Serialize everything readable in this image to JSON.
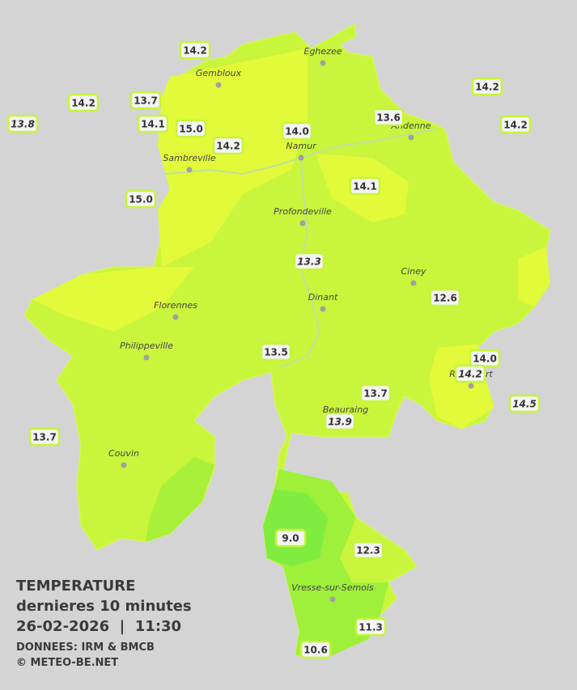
{
  "title": "TEMPERATURE",
  "subtitle": "dernieres 10 minutes",
  "datetime": "26-02-2026  |  11:30",
  "source": "DONNEES: IRM & BMCB",
  "copyright": "© METEO-BE.NET",
  "towns": [
    "Eghezee",
    "Gembloux",
    "Andenne",
    "Namur",
    "Sambreville",
    "Profondeville",
    "Ciney",
    "Dinant",
    "Florennes",
    "Philippeville",
    "Rochefort",
    "Beauraing",
    "Couvin",
    "Vresse-sur-Semois"
  ],
  "stations": [
    {
      "value": "14.2",
      "italic": false
    },
    {
      "value": "14.2",
      "italic": false
    },
    {
      "value": "13.7",
      "italic": false
    },
    {
      "value": "13.8",
      "italic": true
    },
    {
      "value": "14.1",
      "italic": false
    },
    {
      "value": "15.0",
      "italic": false
    },
    {
      "value": "14.2",
      "italic": false
    },
    {
      "value": "14.0",
      "italic": false
    },
    {
      "value": "13.6",
      "italic": false
    },
    {
      "value": "14.2",
      "italic": false
    },
    {
      "value": "14.2",
      "italic": false
    },
    {
      "value": "15.0",
      "italic": false
    },
    {
      "value": "14.1",
      "italic": false
    },
    {
      "value": "13.3",
      "italic": true
    },
    {
      "value": "12.6",
      "italic": false
    },
    {
      "value": "13.5",
      "italic": false
    },
    {
      "value": "14.0",
      "italic": false
    },
    {
      "value": "14.2",
      "italic": true
    },
    {
      "value": "14.5",
      "italic": true
    },
    {
      "value": "13.7",
      "italic": false
    },
    {
      "value": "13.9",
      "italic": true
    },
    {
      "value": "13.7",
      "italic": false
    },
    {
      "value": "9.0",
      "italic": false
    },
    {
      "value": "12.3",
      "italic": false
    },
    {
      "value": "11.3",
      "italic": false
    },
    {
      "value": "10.6",
      "italic": false
    }
  ]
}
